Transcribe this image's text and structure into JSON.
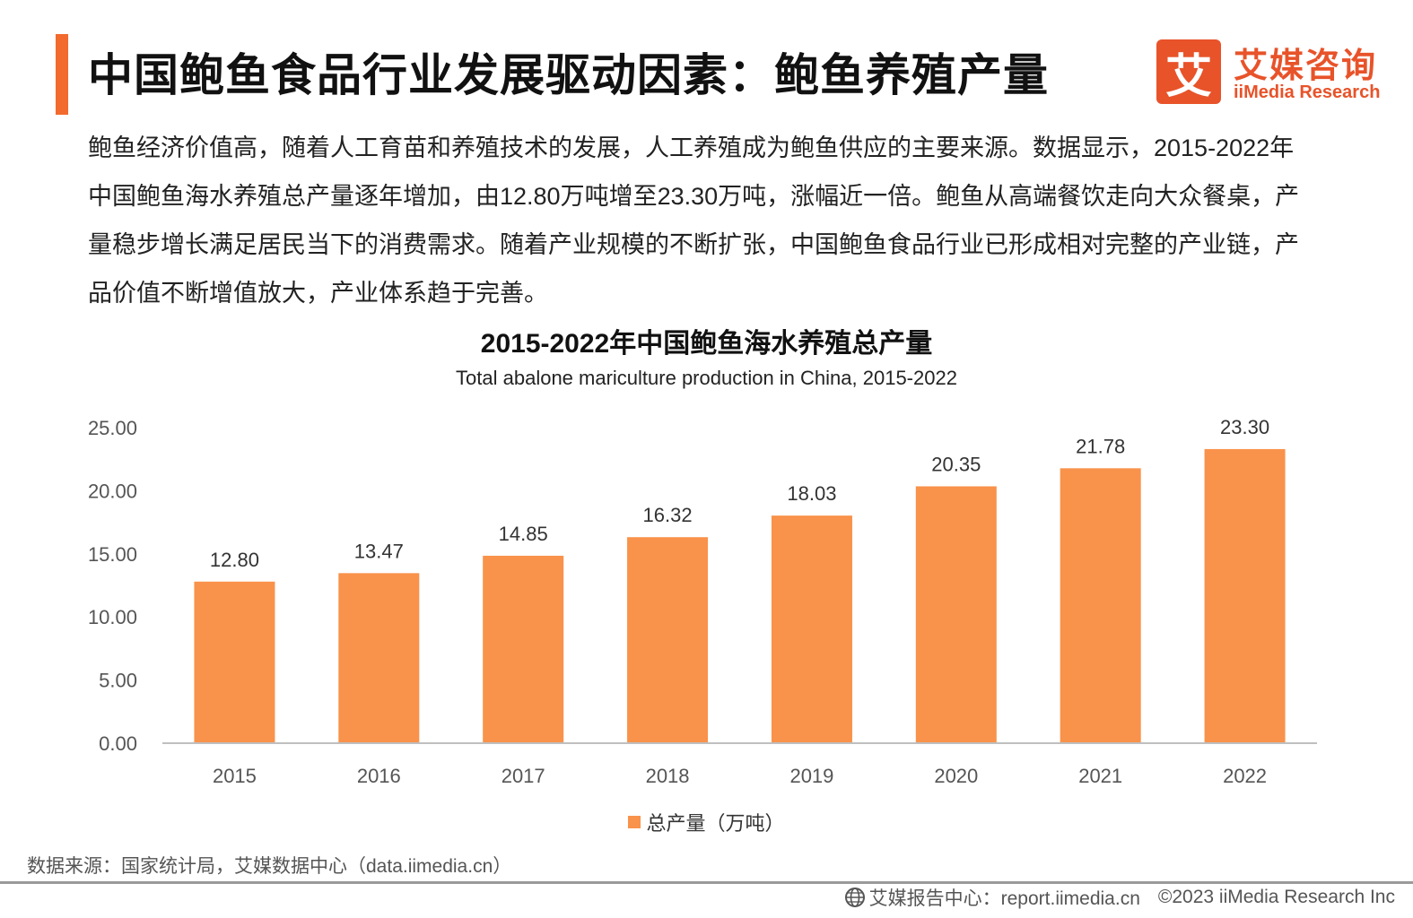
{
  "header": {
    "title": "中国鲍鱼食品行业发展驱动因素：鲍鱼养殖产量",
    "accent_color": "#f26a2e"
  },
  "logo": {
    "glyph": "艾",
    "cn": "艾媒咨询",
    "en": "iiMedia Research",
    "color": "#e8532a"
  },
  "intro": "鲍鱼经济价值高，随着人工育苗和养殖技术的发展，人工养殖成为鲍鱼供应的主要来源。数据显示，2015-2022年中国鲍鱼海水养殖总产量逐年增加，由12.80万吨增至23.30万吨，涨幅近一倍。鲍鱼从高端餐饮走向大众餐桌，产量稳步增长满足居民当下的消费需求。随着产业规模的不断扩张，中国鲍鱼食品行业已形成相对完整的产业链，产品价值不断增值放大，产业体系趋于完善。",
  "chart_data": {
    "type": "bar",
    "title": "2015-2022年中国鲍鱼海水养殖总产量",
    "subtitle": "Total abalone mariculture production in China, 2015-2022",
    "categories": [
      "2015",
      "2016",
      "2017",
      "2018",
      "2019",
      "2020",
      "2021",
      "2022"
    ],
    "series": [
      {
        "name": "总产量（万吨）",
        "values": [
          12.8,
          13.47,
          14.85,
          16.32,
          18.03,
          20.35,
          21.78,
          23.3
        ],
        "color": "#f9924a"
      }
    ],
    "ylim": [
      0,
      25
    ],
    "yticks": [
      "0.00",
      "5.00",
      "10.00",
      "15.00",
      "20.00",
      "25.00"
    ],
    "grid": false,
    "legend_position": "bottom"
  },
  "source": "数据来源：国家统计局，艾媒数据中心（data.iimedia.cn）",
  "footer": {
    "icon": "globe-icon",
    "report": "艾媒报告中心：report.iimedia.cn",
    "copyright": "©2023  iiMedia Research  Inc"
  }
}
